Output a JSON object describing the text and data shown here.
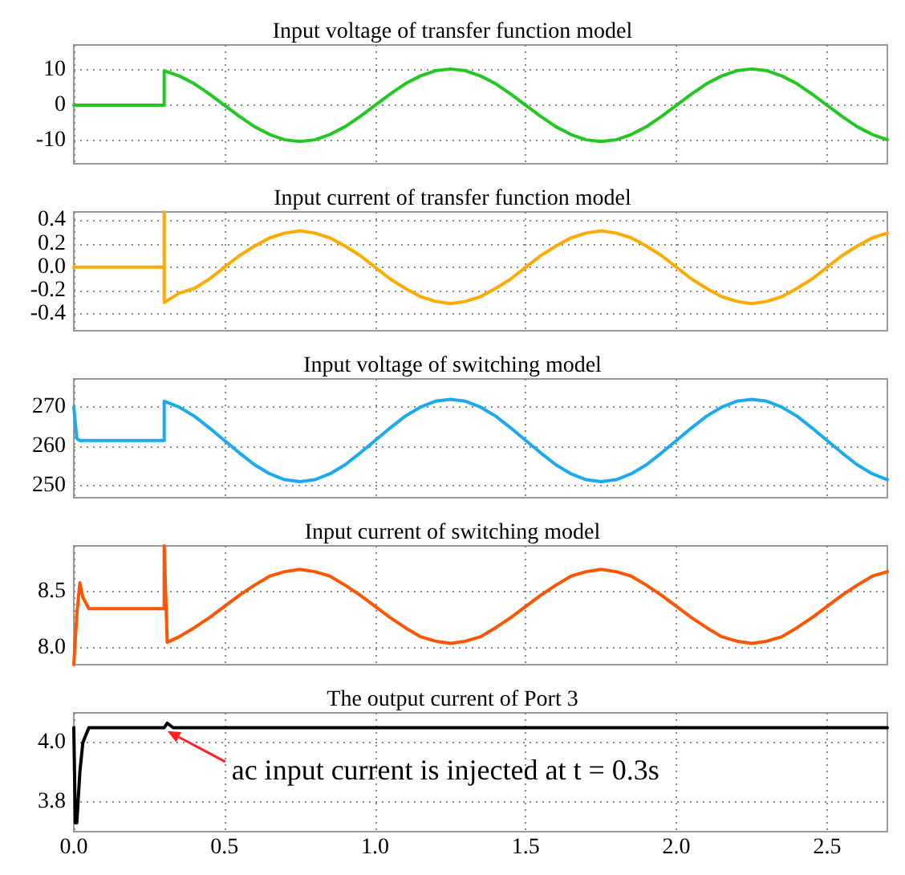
{
  "chart_data": [
    {
      "type": "line",
      "title": "Input voltage of transfer function model",
      "color": "#22c822",
      "x": [
        0,
        0.3,
        0.3,
        0.35,
        0.4,
        0.45,
        0.5,
        0.55,
        0.6,
        0.65,
        0.7,
        0.75,
        0.8,
        0.85,
        0.9,
        0.95,
        1.0,
        1.05,
        1.1,
        1.15,
        1.2,
        1.25,
        1.3,
        1.35,
        1.4,
        1.45,
        1.5,
        1.55,
        1.6,
        1.65,
        1.7,
        1.75,
        1.8,
        1.85,
        1.9,
        1.95,
        2.0,
        2.05,
        2.1,
        2.15,
        2.2,
        2.25,
        2.3,
        2.35,
        2.4,
        2.45,
        2.5,
        2.55,
        2.6,
        2.65,
        2.7
      ],
      "values": [
        0,
        0,
        9.8,
        8.3,
        6.1,
        3.2,
        0,
        -3.2,
        -6.1,
        -8.3,
        -9.8,
        -10.3,
        -9.8,
        -8.3,
        -6.1,
        -3.2,
        0,
        3.2,
        6.1,
        8.3,
        9.8,
        10.3,
        9.8,
        8.3,
        6.1,
        3.2,
        0,
        -3.2,
        -6.1,
        -8.3,
        -9.8,
        -10.3,
        -9.8,
        -8.3,
        -6.1,
        -3.2,
        0,
        3.2,
        6.1,
        8.3,
        9.8,
        10.3,
        9.8,
        8.3,
        6.1,
        3.2,
        0,
        -3.2,
        -6.1,
        -8.3,
        -9.8
      ],
      "xlim": [
        0,
        2.7
      ],
      "xticks": [
        0,
        0.5,
        1,
        1.5,
        2,
        2.5
      ],
      "ylim": [
        -16.6,
        17.1
      ],
      "yticks": [
        -10,
        0,
        10
      ],
      "grid": true,
      "tick_labels": "y"
    },
    {
      "type": "line",
      "title": "Input current of transfer function model",
      "color": "#ffaa00",
      "x": [
        0,
        0.3,
        0.3,
        0.3,
        0.35,
        0.4,
        0.45,
        0.5,
        0.55,
        0.6,
        0.65,
        0.7,
        0.75,
        0.8,
        0.85,
        0.9,
        0.95,
        1.0,
        1.05,
        1.1,
        1.15,
        1.2,
        1.25,
        1.3,
        1.35,
        1.4,
        1.45,
        1.5,
        1.55,
        1.6,
        1.65,
        1.7,
        1.75,
        1.8,
        1.85,
        1.9,
        1.95,
        2.0,
        2.05,
        2.1,
        2.15,
        2.2,
        2.25,
        2.3,
        2.35,
        2.4,
        2.45,
        2.5,
        2.55,
        2.6,
        2.65,
        2.7
      ],
      "values": [
        0,
        0,
        0.47,
        -0.3,
        -0.22,
        -0.18,
        -0.1,
        0,
        0.1,
        0.18,
        0.25,
        0.29,
        0.31,
        0.29,
        0.25,
        0.18,
        0.1,
        0,
        -0.1,
        -0.18,
        -0.25,
        -0.29,
        -0.31,
        -0.29,
        -0.25,
        -0.18,
        -0.1,
        0,
        0.1,
        0.18,
        0.25,
        0.29,
        0.31,
        0.29,
        0.25,
        0.18,
        0.1,
        0,
        -0.1,
        -0.18,
        -0.25,
        -0.29,
        -0.31,
        -0.29,
        -0.25,
        -0.18,
        -0.1,
        0,
        0.1,
        0.18,
        0.25,
        0.29
      ],
      "xlim": [
        0,
        2.7
      ],
      "xticks": [
        0,
        0.5,
        1,
        1.5,
        2,
        2.5
      ],
      "ylim": [
        -0.54,
        0.47
      ],
      "yticks": [
        -0.4,
        -0.2,
        {
          "value": 0,
          "label": "0.0"
        },
        0.2,
        0.4
      ],
      "grid": true,
      "tick_labels": "y"
    },
    {
      "type": "line",
      "title": "Input voltage of switching model",
      "color": "#1aaaf0",
      "x": [
        0,
        0.01,
        0.02,
        0.3,
        0.3,
        0.35,
        0.4,
        0.45,
        0.5,
        0.55,
        0.6,
        0.65,
        0.7,
        0.75,
        0.8,
        0.85,
        0.9,
        0.95,
        1.0,
        1.05,
        1.1,
        1.15,
        1.2,
        1.25,
        1.3,
        1.35,
        1.4,
        1.45,
        1.5,
        1.55,
        1.6,
        1.65,
        1.7,
        1.75,
        1.8,
        1.85,
        1.9,
        1.95,
        2.0,
        2.05,
        2.1,
        2.15,
        2.2,
        2.25,
        2.3,
        2.35,
        2.4,
        2.45,
        2.5,
        2.55,
        2.6,
        2.65,
        2.7
      ],
      "values": [
        270,
        262,
        261.5,
        261.5,
        271.5,
        270,
        267.7,
        264.7,
        261.5,
        258.3,
        255.3,
        253,
        251.5,
        251,
        251.5,
        253,
        255.3,
        258.3,
        261.5,
        264.7,
        267.7,
        270,
        271.5,
        272,
        271.5,
        270,
        267.7,
        264.7,
        261.5,
        258.3,
        255.3,
        253,
        251.5,
        251,
        251.5,
        253,
        255.3,
        258.3,
        261.5,
        264.7,
        267.7,
        270,
        271.5,
        272,
        271.5,
        270,
        267.7,
        264.7,
        261.5,
        258.3,
        255.3,
        253,
        251.5
      ],
      "xlim": [
        0,
        2.7
      ],
      "xticks": [
        0,
        0.5,
        1,
        1.5,
        2,
        2.5
      ],
      "ylim": [
        246.9,
        277.2
      ],
      "yticks": [
        250,
        260,
        270
      ],
      "grid": true,
      "tick_labels": "y"
    },
    {
      "type": "line",
      "title": "Input current of switching model",
      "color": "#ff5500",
      "x": [
        0,
        0.01,
        0.02,
        0.03,
        0.05,
        0.3,
        0.3,
        0.31,
        0.35,
        0.4,
        0.45,
        0.5,
        0.55,
        0.6,
        0.65,
        0.7,
        0.75,
        0.8,
        0.85,
        0.9,
        0.95,
        1.0,
        1.05,
        1.1,
        1.15,
        1.2,
        1.25,
        1.3,
        1.35,
        1.4,
        1.45,
        1.5,
        1.55,
        1.6,
        1.65,
        1.7,
        1.75,
        1.8,
        1.85,
        1.9,
        1.95,
        2.0,
        2.05,
        2.1,
        2.15,
        2.2,
        2.25,
        2.3,
        2.35,
        2.4,
        2.45,
        2.5,
        2.55,
        2.6,
        2.65,
        2.7
      ],
      "values": [
        7.85,
        8.3,
        8.58,
        8.45,
        8.35,
        8.35,
        8.91,
        8.05,
        8.1,
        8.18,
        8.27,
        8.37,
        8.47,
        8.56,
        8.64,
        8.68,
        8.7,
        8.68,
        8.64,
        8.56,
        8.47,
        8.37,
        8.27,
        8.18,
        8.1,
        8.06,
        8.04,
        8.06,
        8.1,
        8.18,
        8.27,
        8.37,
        8.47,
        8.56,
        8.64,
        8.68,
        8.7,
        8.68,
        8.64,
        8.56,
        8.47,
        8.37,
        8.27,
        8.18,
        8.1,
        8.06,
        8.04,
        8.06,
        8.1,
        8.18,
        8.27,
        8.37,
        8.47,
        8.56,
        8.64,
        8.68
      ],
      "xlim": [
        0,
        2.7
      ],
      "xticks": [
        0,
        0.5,
        1,
        1.5,
        2,
        2.5
      ],
      "ylim": [
        7.85,
        8.91
      ],
      "yticks": [
        {
          "value": 8,
          "label": "8.0"
        },
        8.5
      ],
      "grid": true,
      "tick_labels": "y"
    },
    {
      "type": "line",
      "title": "The output current of Port 3",
      "color": "#000000",
      "x": [
        0,
        0.005,
        0.01,
        0.02,
        0.03,
        0.05,
        0.3,
        0.31,
        0.33,
        1.0,
        2.0,
        2.7
      ],
      "values": [
        4.05,
        3.73,
        3.73,
        3.9,
        4.0,
        4.05,
        4.05,
        4.065,
        4.05,
        4.05,
        4.05,
        4.05
      ],
      "xlim": [
        0,
        2.7
      ],
      "xticks": [
        {
          "value": 0,
          "label": "0.0"
        },
        0.5,
        {
          "value": 1,
          "label": "1.0"
        },
        1.5,
        {
          "value": 2,
          "label": "2.0"
        },
        2.5
      ],
      "ylim": [
        3.7,
        4.1
      ],
      "yticks": [
        3.8,
        {
          "value": 4,
          "label": "4.0"
        }
      ],
      "grid": true,
      "annotations": [
        {
          "text": "ac input current is injected at t = 0.3s",
          "x": 0.3,
          "y": 4.06
        }
      ]
    }
  ]
}
